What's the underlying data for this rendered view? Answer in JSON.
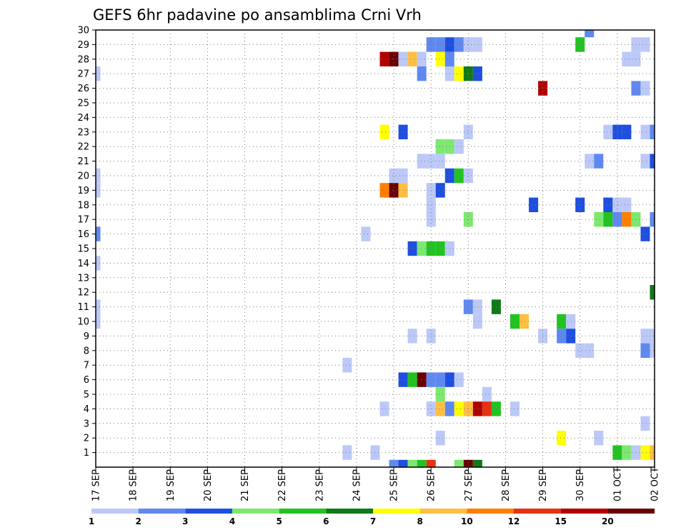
{
  "chart_data": {
    "type": "heatmap",
    "title": "GEFS 6hr padavine po ansamblima Crni Vrh",
    "xlabel": "",
    "ylabel": "",
    "x_tick_labels": [
      "17 SEP",
      "18 SEP",
      "19 SEP",
      "20 SEP",
      "21 SEP",
      "22 SEP",
      "23 SEP",
      "24 SEP",
      "25 SEP",
      "26 SEP",
      "27 SEP",
      "28 SEP",
      "29 SEP",
      "30 SEP",
      "01 OCT",
      "02 OCT"
    ],
    "y_tick_labels": [
      "1",
      "2",
      "3",
      "4",
      "5",
      "6",
      "7",
      "8",
      "9",
      "10",
      "11",
      "12",
      "13",
      "14",
      "15",
      "16",
      "17",
      "18",
      "19",
      "20",
      "21",
      "22",
      "23",
      "24",
      "25",
      "26",
      "27",
      "28",
      "29",
      "30"
    ],
    "steps_per_day": 4,
    "num_steps": 61,
    "members": 30,
    "grid": true,
    "legend_position": "bottom",
    "color_scale": {
      "labels": [
        "1",
        "2",
        "3",
        "4",
        "5",
        "6",
        "7",
        "8",
        "10",
        "12",
        "15",
        "20"
      ],
      "colors": [
        "#bcc9f8",
        "#5f88f0",
        "#1f4fe0",
        "#7de870",
        "#22c321",
        "#0f7a17",
        "#ffff00",
        "#ffbf40",
        "#ff7f00",
        "#e63210",
        "#b00000",
        "#6a0000"
      ]
    },
    "cells": [
      {
        "member": 30,
        "step": 53,
        "cat": 1
      },
      {
        "member": 29,
        "step": 36,
        "cat": 1
      },
      {
        "member": 29,
        "step": 37,
        "cat": 1
      },
      {
        "member": 29,
        "step": 38,
        "cat": 2
      },
      {
        "member": 29,
        "step": 39,
        "cat": 1
      },
      {
        "member": 29,
        "step": 40,
        "cat": 0
      },
      {
        "member": 29,
        "step": 41,
        "cat": 0
      },
      {
        "member": 29,
        "step": 52,
        "cat": 4
      },
      {
        "member": 29,
        "step": 58,
        "cat": 0
      },
      {
        "member": 29,
        "step": 59,
        "cat": 0
      },
      {
        "member": 28,
        "step": 31,
        "cat": 10
      },
      {
        "member": 28,
        "step": 32,
        "cat": 11
      },
      {
        "member": 28,
        "step": 33,
        "cat": 0
      },
      {
        "member": 28,
        "step": 34,
        "cat": 7
      },
      {
        "member": 28,
        "step": 35,
        "cat": 0
      },
      {
        "member": 28,
        "step": 37,
        "cat": 6
      },
      {
        "member": 28,
        "step": 38,
        "cat": 1
      },
      {
        "member": 28,
        "step": 57,
        "cat": 0
      },
      {
        "member": 28,
        "step": 58,
        "cat": 0
      },
      {
        "member": 27,
        "step": 0,
        "cat": 0
      },
      {
        "member": 27,
        "step": 35,
        "cat": 1
      },
      {
        "member": 27,
        "step": 38,
        "cat": 0
      },
      {
        "member": 27,
        "step": 39,
        "cat": 6
      },
      {
        "member": 27,
        "step": 40,
        "cat": 5
      },
      {
        "member": 27,
        "step": 41,
        "cat": 2
      },
      {
        "member": 26,
        "step": 48,
        "cat": 10
      },
      {
        "member": 26,
        "step": 58,
        "cat": 1
      },
      {
        "member": 26,
        "step": 59,
        "cat": 0
      },
      {
        "member": 23,
        "step": 31,
        "cat": 6
      },
      {
        "member": 23,
        "step": 33,
        "cat": 2
      },
      {
        "member": 23,
        "step": 40,
        "cat": 0
      },
      {
        "member": 23,
        "step": 55,
        "cat": 0
      },
      {
        "member": 23,
        "step": 56,
        "cat": 2
      },
      {
        "member": 23,
        "step": 57,
        "cat": 2
      },
      {
        "member": 23,
        "step": 59,
        "cat": 0
      },
      {
        "member": 23,
        "step": 60,
        "cat": 1
      },
      {
        "member": 22,
        "step": 37,
        "cat": 3
      },
      {
        "member": 22,
        "step": 38,
        "cat": 3
      },
      {
        "member": 22,
        "step": 39,
        "cat": 0
      },
      {
        "member": 21,
        "step": 35,
        "cat": 0
      },
      {
        "member": 21,
        "step": 36,
        "cat": 0
      },
      {
        "member": 21,
        "step": 37,
        "cat": 0
      },
      {
        "member": 21,
        "step": 53,
        "cat": 0
      },
      {
        "member": 21,
        "step": 54,
        "cat": 1
      },
      {
        "member": 21,
        "step": 59,
        "cat": 0
      },
      {
        "member": 21,
        "step": 60,
        "cat": 2
      },
      {
        "member": 20,
        "step": 0,
        "cat": 0
      },
      {
        "member": 20,
        "step": 32,
        "cat": 0
      },
      {
        "member": 20,
        "step": 33,
        "cat": 0
      },
      {
        "member": 20,
        "step": 38,
        "cat": 2
      },
      {
        "member": 20,
        "step": 39,
        "cat": 4
      },
      {
        "member": 20,
        "step": 40,
        "cat": 0
      },
      {
        "member": 19,
        "step": 0,
        "cat": 0
      },
      {
        "member": 19,
        "step": 31,
        "cat": 8
      },
      {
        "member": 19,
        "step": 32,
        "cat": 11
      },
      {
        "member": 19,
        "step": 33,
        "cat": 7
      },
      {
        "member": 19,
        "step": 36,
        "cat": 0
      },
      {
        "member": 19,
        "step": 37,
        "cat": 2
      },
      {
        "member": 18,
        "step": 36,
        "cat": 0
      },
      {
        "member": 18,
        "step": 47,
        "cat": 2
      },
      {
        "member": 18,
        "step": 52,
        "cat": 2
      },
      {
        "member": 18,
        "step": 55,
        "cat": 2
      },
      {
        "member": 18,
        "step": 56,
        "cat": 0
      },
      {
        "member": 18,
        "step": 57,
        "cat": 0
      },
      {
        "member": 17,
        "step": 36,
        "cat": 0
      },
      {
        "member": 17,
        "step": 40,
        "cat": 3
      },
      {
        "member": 17,
        "step": 54,
        "cat": 3
      },
      {
        "member": 17,
        "step": 55,
        "cat": 4
      },
      {
        "member": 17,
        "step": 56,
        "cat": 1
      },
      {
        "member": 17,
        "step": 57,
        "cat": 8
      },
      {
        "member": 17,
        "step": 58,
        "cat": 3
      },
      {
        "member": 17,
        "step": 60,
        "cat": 1
      },
      {
        "member": 16,
        "step": 0,
        "cat": 1
      },
      {
        "member": 16,
        "step": 29,
        "cat": 0
      },
      {
        "member": 16,
        "step": 59,
        "cat": 2
      },
      {
        "member": 15,
        "step": 34,
        "cat": 2
      },
      {
        "member": 15,
        "step": 35,
        "cat": 3
      },
      {
        "member": 15,
        "step": 36,
        "cat": 4
      },
      {
        "member": 15,
        "step": 37,
        "cat": 4
      },
      {
        "member": 15,
        "step": 38,
        "cat": 0
      },
      {
        "member": 14,
        "step": 0,
        "cat": 0
      },
      {
        "member": 12,
        "step": 60,
        "cat": 5
      },
      {
        "member": 11,
        "step": 0,
        "cat": 0
      },
      {
        "member": 11,
        "step": 40,
        "cat": 1
      },
      {
        "member": 11,
        "step": 41,
        "cat": 0
      },
      {
        "member": 11,
        "step": 43,
        "cat": 5
      },
      {
        "member": 10,
        "step": 0,
        "cat": 0
      },
      {
        "member": 10,
        "step": 41,
        "cat": 0
      },
      {
        "member": 10,
        "step": 45,
        "cat": 4
      },
      {
        "member": 10,
        "step": 46,
        "cat": 7
      },
      {
        "member": 10,
        "step": 50,
        "cat": 4
      },
      {
        "member": 10,
        "step": 51,
        "cat": 0
      },
      {
        "member": 9,
        "step": 34,
        "cat": 0
      },
      {
        "member": 9,
        "step": 36,
        "cat": 0
      },
      {
        "member": 9,
        "step": 48,
        "cat": 0
      },
      {
        "member": 9,
        "step": 50,
        "cat": 1
      },
      {
        "member": 9,
        "step": 51,
        "cat": 2
      },
      {
        "member": 9,
        "step": 59,
        "cat": 0
      },
      {
        "member": 9,
        "step": 60,
        "cat": 0
      },
      {
        "member": 8,
        "step": 52,
        "cat": 0
      },
      {
        "member": 8,
        "step": 53,
        "cat": 0
      },
      {
        "member": 8,
        "step": 59,
        "cat": 1
      },
      {
        "member": 8,
        "step": 60,
        "cat": 0
      },
      {
        "member": 7,
        "step": 27,
        "cat": 0
      },
      {
        "member": 6,
        "step": 33,
        "cat": 2
      },
      {
        "member": 6,
        "step": 34,
        "cat": 4
      },
      {
        "member": 6,
        "step": 35,
        "cat": 11
      },
      {
        "member": 6,
        "step": 36,
        "cat": 1
      },
      {
        "member": 6,
        "step": 37,
        "cat": 1
      },
      {
        "member": 6,
        "step": 38,
        "cat": 2
      },
      {
        "member": 6,
        "step": 39,
        "cat": 0
      },
      {
        "member": 5,
        "step": 37,
        "cat": 3
      },
      {
        "member": 5,
        "step": 42,
        "cat": 0
      },
      {
        "member": 4,
        "step": 31,
        "cat": 0
      },
      {
        "member": 4,
        "step": 36,
        "cat": 0
      },
      {
        "member": 4,
        "step": 37,
        "cat": 7
      },
      {
        "member": 4,
        "step": 38,
        "cat": 1
      },
      {
        "member": 4,
        "step": 39,
        "cat": 6
      },
      {
        "member": 4,
        "step": 40,
        "cat": 7
      },
      {
        "member": 4,
        "step": 41,
        "cat": 10
      },
      {
        "member": 4,
        "step": 42,
        "cat": 9
      },
      {
        "member": 4,
        "step": 43,
        "cat": 4
      },
      {
        "member": 4,
        "step": 45,
        "cat": 0
      },
      {
        "member": 3,
        "step": 59,
        "cat": 0
      },
      {
        "member": 2,
        "step": 37,
        "cat": 0
      },
      {
        "member": 2,
        "step": 50,
        "cat": 6
      },
      {
        "member": 2,
        "step": 54,
        "cat": 0
      },
      {
        "member": 1,
        "step": 27,
        "cat": 0
      },
      {
        "member": 1,
        "step": 30,
        "cat": 0
      },
      {
        "member": 1,
        "step": 56,
        "cat": 4
      },
      {
        "member": 1,
        "step": 57,
        "cat": 3
      },
      {
        "member": 1,
        "step": 58,
        "cat": 0
      },
      {
        "member": 1,
        "step": 59,
        "cat": 6
      },
      {
        "member": 1,
        "step": 60,
        "cat": 7
      },
      {
        "member": 0,
        "step": 32,
        "cat": 1
      },
      {
        "member": 0,
        "step": 33,
        "cat": 2
      },
      {
        "member": 0,
        "step": 34,
        "cat": 3
      },
      {
        "member": 0,
        "step": 35,
        "cat": 4
      },
      {
        "member": 0,
        "step": 36,
        "cat": 9
      },
      {
        "member": 0,
        "step": 39,
        "cat": 3
      },
      {
        "member": 0,
        "step": 40,
        "cat": 11
      },
      {
        "member": 0,
        "step": 41,
        "cat": 5
      }
    ]
  }
}
